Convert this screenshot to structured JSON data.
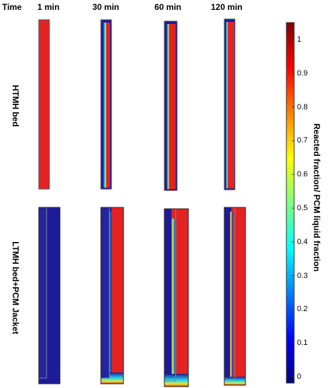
{
  "header": {
    "time_label": "Time",
    "columns": [
      "1 min",
      "30 min",
      "60 min",
      "120 min"
    ]
  },
  "rows": [
    {
      "label": "HTMH bed"
    },
    {
      "label": "LTMH bed+PCM Jacket"
    }
  ],
  "colorbar": {
    "title": "Reacted fraction/ PCM liquid fraction",
    "range": [
      0,
      1
    ],
    "ticks": [
      "0",
      "0.1",
      "0.2",
      "0.3",
      "0.4",
      "0.5",
      "0.6",
      "0.7",
      "0.8",
      "0.9",
      "1"
    ],
    "colors": [
      "#00007f",
      "#0000ff",
      "#007fff",
      "#00ffff",
      "#7fff7f",
      "#ffff00",
      "#ff7f00",
      "#ff0000",
      "#7f0000"
    ]
  },
  "colors": {
    "reacted": "#e32222",
    "unreacted": "#1c1c9a",
    "front_cyan": "#27d8f0",
    "front_yellow": "#e8e62a"
  }
}
